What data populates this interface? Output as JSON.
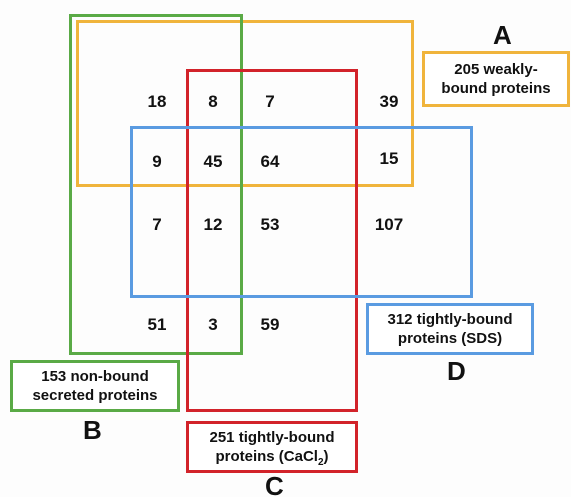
{
  "colors": {
    "set_a": "#f0b43c",
    "set_b": "#5aaa46",
    "set_c": "#d2232a",
    "set_d": "#5a9be1"
  },
  "sets": {
    "a": {
      "letter": "A",
      "label_line1": "205 weakly-",
      "label_line2": "bound  proteins"
    },
    "b": {
      "letter": "B",
      "label_line1": "153 non-bound",
      "label_line2": "secreted proteins"
    },
    "c": {
      "letter": "C",
      "label_line1": "251 tightly-bound",
      "label_line2_prefix": "proteins (CaCl",
      "label_line2_sub": "2",
      "label_line2_suffix": ")"
    },
    "d": {
      "letter": "D",
      "label_line1": "312 tightly-bound",
      "label_line2": "proteins (SDS)"
    }
  },
  "regions": {
    "r1_c1": "18",
    "r1_c2": "8",
    "r1_c3": "7",
    "r1_c4": "39",
    "r2_c1": "9",
    "r2_c2": "45",
    "r2_c3": "64",
    "r2_c4": "15",
    "r3_c1": "7",
    "r3_c2": "12",
    "r3_c3": "53",
    "r3_c4": "107",
    "r4_c1": "51",
    "r4_c2": "3",
    "r4_c3": "59"
  }
}
